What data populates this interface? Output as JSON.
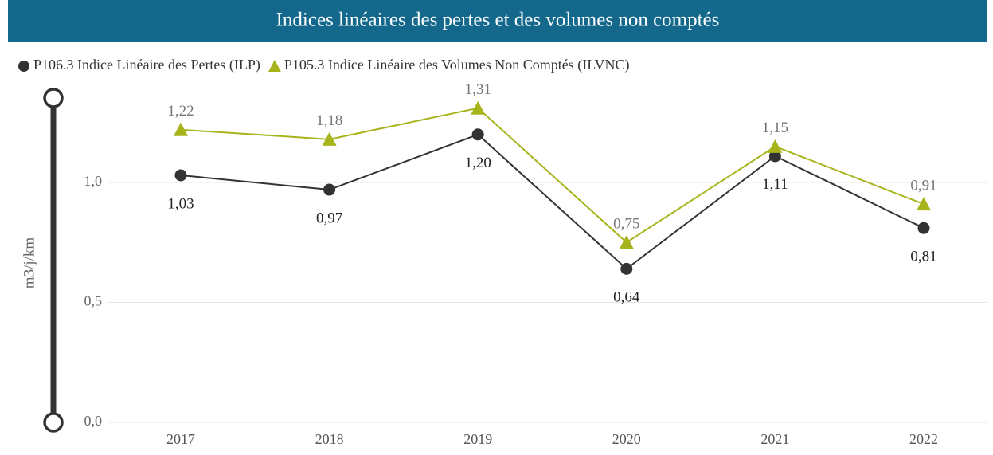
{
  "chart_data": {
    "type": "line",
    "title": "Indices linéaires des pertes et des volumes non comptés",
    "y_label": "m3/j/km",
    "categories": [
      "2017",
      "2018",
      "2019",
      "2020",
      "2021",
      "2022"
    ],
    "series": [
      {
        "name": "P106.3 Indice Linéaire des Pertes (ILP)",
        "color": "#333333",
        "marker": "circle",
        "values": [
          1.03,
          0.97,
          1.2,
          0.64,
          1.11,
          0.81
        ],
        "value_labels": [
          "1,03",
          "0,97",
          "1,20",
          "0,64",
          "1,11",
          "0,81"
        ]
      },
      {
        "name": "P105.3 Indice Linéaire des Volumes Non Comptés (ILVNC)",
        "color": "#a8b41c",
        "marker": "triangle",
        "values": [
          1.22,
          1.18,
          1.31,
          0.75,
          1.15,
          0.91
        ],
        "value_labels": [
          "1,22",
          "1,18",
          "1,31",
          "0,75",
          "1,15",
          "0,91"
        ]
      }
    ],
    "ylim": [
      0,
      1.36
    ],
    "yticks": [
      {
        "value": 0,
        "label": "0,0"
      },
      {
        "value": 0.5,
        "label": "0,5"
      },
      {
        "value": 1,
        "label": "1,0"
      }
    ],
    "grid": true,
    "legend": "top-left"
  }
}
